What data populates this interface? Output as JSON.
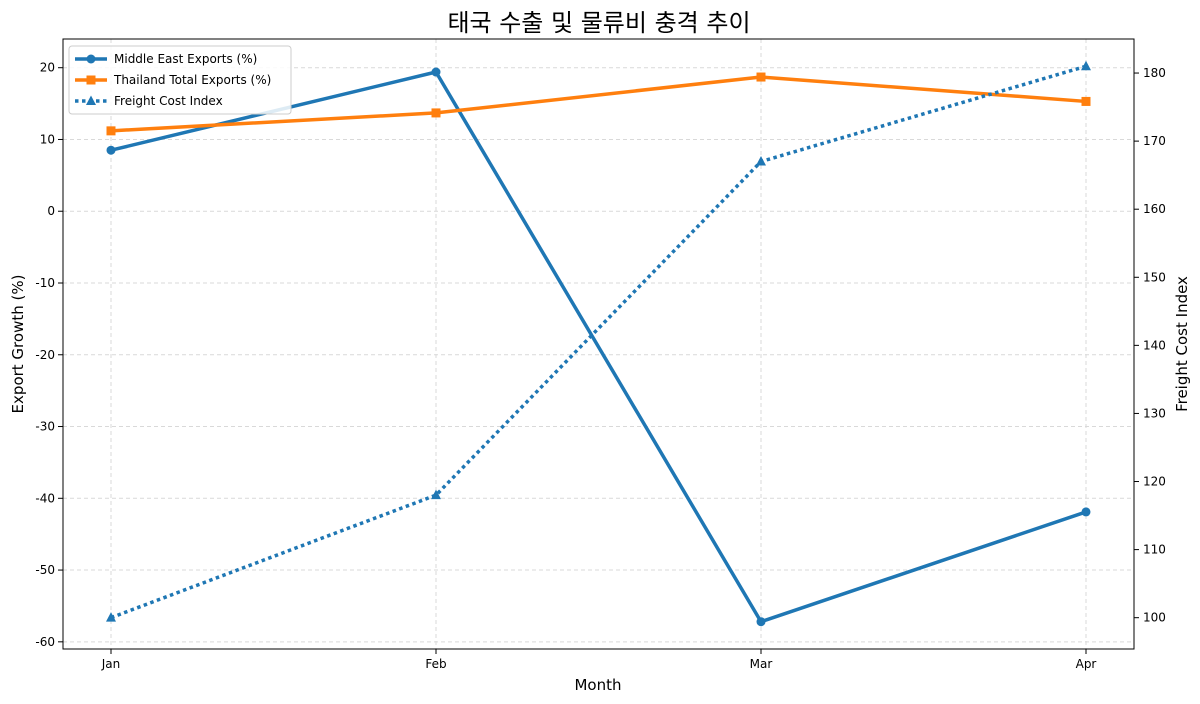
{
  "chart_data": {
    "type": "line",
    "title": "태국 수출 및 물류비 충격 추이",
    "xlabel": "Month",
    "ylabel": "Export Growth (%)",
    "y2label": "Freight Cost Index",
    "categories": [
      "Jan",
      "Feb",
      "Mar",
      "Apr"
    ],
    "ylim": [
      -61,
      24
    ],
    "y2lim": [
      95.4,
      185
    ],
    "yticks": [
      -60,
      -50,
      -40,
      -30,
      -20,
      -10,
      0,
      10,
      20
    ],
    "y2ticks": [
      100,
      110,
      120,
      130,
      140,
      150,
      160,
      170,
      180
    ],
    "grid": true,
    "legend_position": "top-left",
    "series": [
      {
        "name": "Middle East Exports (%)",
        "axis": "left",
        "values": [
          8.5,
          19.4,
          -57.2,
          -41.9
        ],
        "color": "#1f77b4",
        "style": "solid",
        "marker": "circle"
      },
      {
        "name": "Thailand Total Exports (%)",
        "axis": "left",
        "values": [
          11.2,
          13.7,
          18.7,
          15.3
        ],
        "color": "#ff7f0e",
        "style": "solid",
        "marker": "square"
      },
      {
        "name": "Freight Cost Index",
        "axis": "right",
        "values": [
          100,
          118,
          167,
          181
        ],
        "color": "#1f77b4",
        "style": "dotted",
        "marker": "triangle"
      }
    ]
  }
}
